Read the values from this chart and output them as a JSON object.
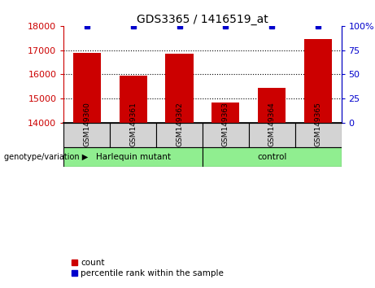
{
  "title": "GDS3365 / 1416519_at",
  "categories": [
    "GSM149360",
    "GSM149361",
    "GSM149362",
    "GSM149363",
    "GSM149364",
    "GSM149365"
  ],
  "bar_values": [
    16900,
    15950,
    16850,
    14850,
    15430,
    17450
  ],
  "percentile_values": [
    100,
    100,
    100,
    100,
    100,
    100
  ],
  "bar_color": "#cc0000",
  "percentile_color": "#0000cc",
  "ylim_left": [
    14000,
    18000
  ],
  "yticks_left": [
    14000,
    15000,
    16000,
    17000,
    18000
  ],
  "ylim_right": [
    0,
    100
  ],
  "yticks_right": [
    0,
    25,
    50,
    75,
    100
  ],
  "group1_label": "Harlequin mutant",
  "group2_label": "control",
  "group1_indices": [
    0,
    1,
    2
  ],
  "group2_indices": [
    3,
    4,
    5
  ],
  "group_bg_color": "#90ee90",
  "sample_bg_color": "#d3d3d3",
  "legend_count_label": "count",
  "legend_percentile_label": "percentile rank within the sample",
  "xlabel_left": "genotype/variation"
}
